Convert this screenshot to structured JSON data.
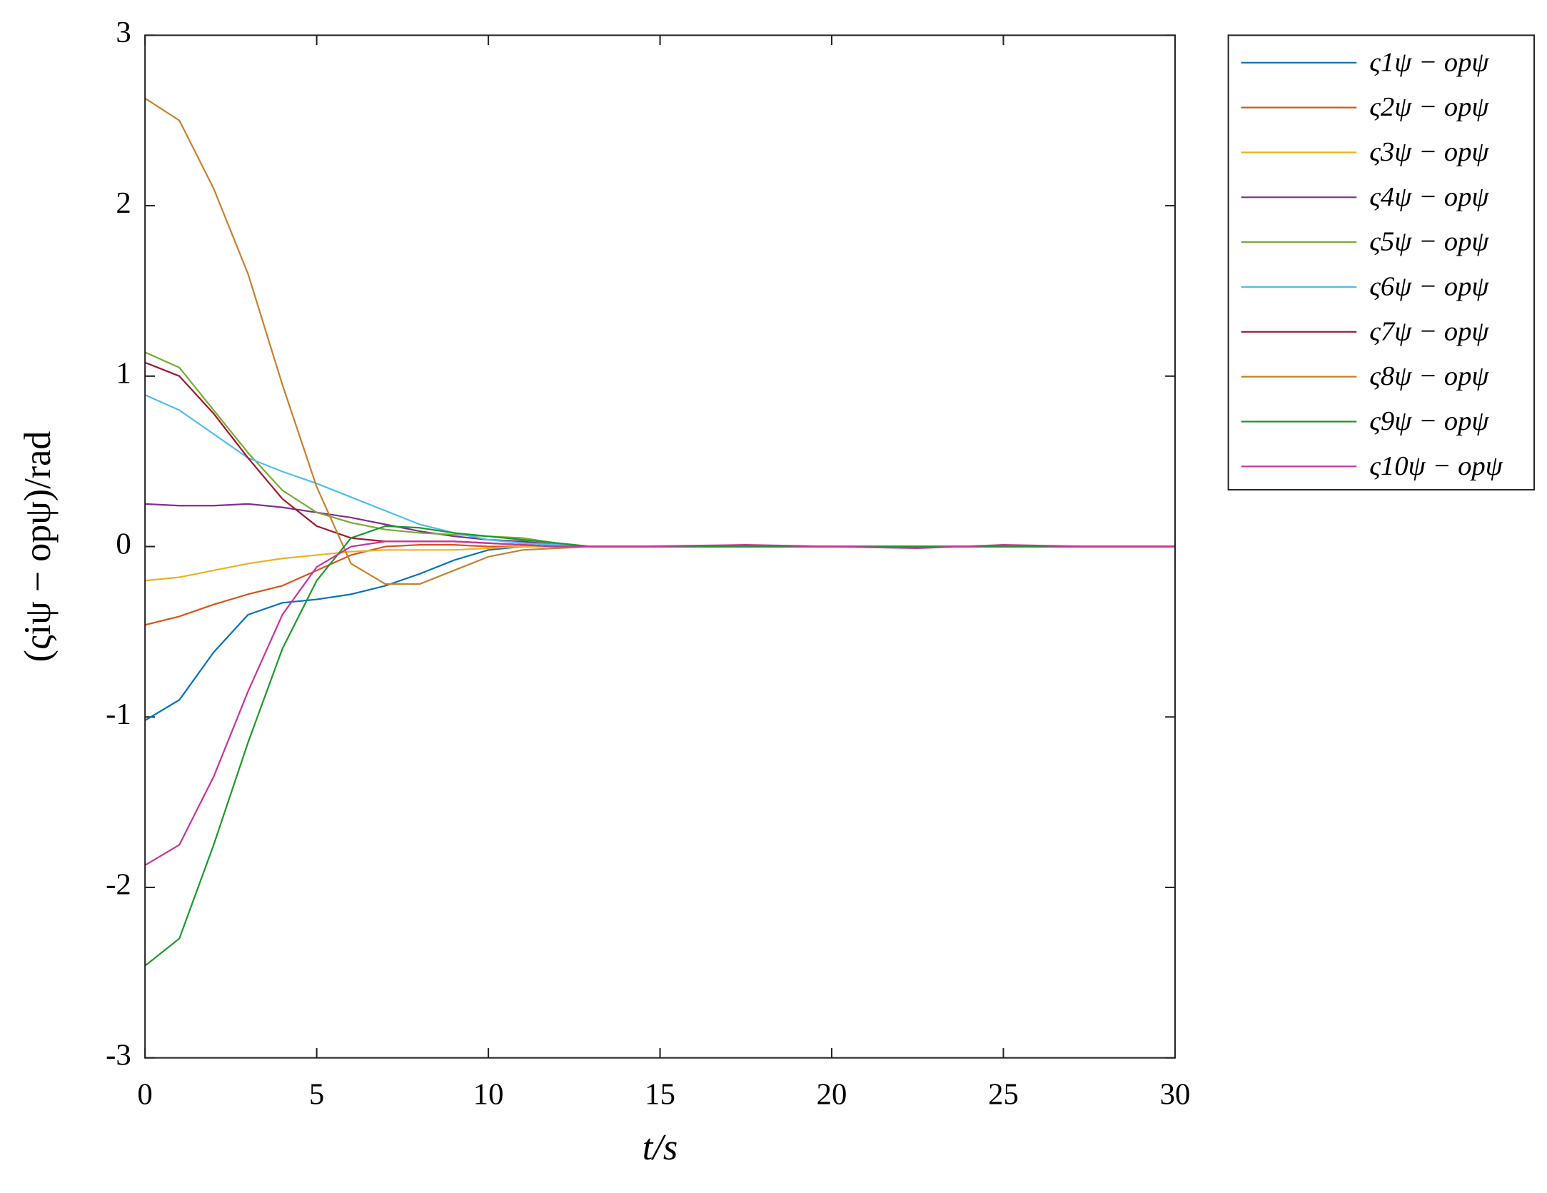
{
  "chart_data": {
    "type": "line",
    "xlabel": "t/s",
    "ylabel": "(ςiψ − opψ)/rad",
    "x": [
      0,
      1,
      2,
      3,
      4,
      5,
      6,
      7,
      8,
      9,
      10,
      11,
      12,
      13,
      14,
      17.5,
      20,
      22.5,
      25,
      27.5,
      30
    ],
    "xlim": [
      0,
      30
    ],
    "xticks": [
      0,
      5,
      10,
      15,
      20,
      25,
      30
    ],
    "ylim": [
      -3,
      3
    ],
    "yticks": [
      -3,
      -2,
      -1,
      0,
      1,
      2,
      3
    ],
    "legend": "outside-upper-right",
    "series": [
      {
        "name": "ς1ψ − opψ",
        "color": "#0072bd",
        "values": [
          -1.02,
          -0.9,
          -0.62,
          -0.4,
          -0.33,
          -0.31,
          -0.28,
          -0.23,
          -0.16,
          -0.08,
          -0.02,
          0,
          0,
          0,
          0,
          0,
          0,
          0,
          0,
          0,
          0
        ]
      },
      {
        "name": "ς2ψ − opψ",
        "color": "#d95319",
        "values": [
          -0.46,
          -0.41,
          -0.34,
          -0.28,
          -0.23,
          -0.14,
          -0.05,
          0,
          0.01,
          0.01,
          0,
          0,
          0,
          0,
          0,
          0,
          0,
          0,
          0,
          0,
          0
        ]
      },
      {
        "name": "ς3ψ − opψ",
        "color": "#edb120",
        "values": [
          -0.2,
          -0.18,
          -0.14,
          -0.1,
          -0.07,
          -0.05,
          -0.03,
          -0.02,
          -0.02,
          -0.02,
          -0.01,
          0,
          0,
          0,
          0,
          0,
          0,
          0,
          0,
          0,
          0
        ]
      },
      {
        "name": "ς4ψ − opψ",
        "color": "#7e2f8e",
        "values": [
          0.25,
          0.24,
          0.24,
          0.25,
          0.23,
          0.2,
          0.17,
          0.13,
          0.09,
          0.06,
          0.04,
          0.03,
          0.01,
          0,
          0,
          0,
          0,
          0,
          0,
          0,
          0
        ]
      },
      {
        "name": "ς5ψ − opψ",
        "color": "#77ac30",
        "values": [
          1.14,
          1.05,
          0.8,
          0.55,
          0.33,
          0.2,
          0.14,
          0.1,
          0.08,
          0.07,
          0.06,
          0.05,
          0.02,
          0,
          0,
          0,
          0,
          0,
          0,
          0,
          0
        ]
      },
      {
        "name": "ς6ψ − opψ",
        "color": "#4dbeee",
        "values": [
          0.89,
          0.8,
          0.66,
          0.52,
          0.44,
          0.37,
          0.29,
          0.21,
          0.13,
          0.08,
          0.04,
          0.02,
          0.01,
          0,
          0,
          0,
          0,
          0,
          0,
          0,
          0
        ]
      },
      {
        "name": "ς7ψ − opψ",
        "color": "#a2142f",
        "values": [
          1.08,
          1.0,
          0.78,
          0.52,
          0.28,
          0.12,
          0.05,
          0.03,
          0.03,
          0.03,
          0.02,
          0.01,
          0,
          0,
          0,
          0,
          0,
          0,
          0,
          0,
          0
        ]
      },
      {
        "name": "ς8ψ − opψ",
        "color": "#c8802e",
        "values": [
          2.63,
          2.5,
          2.1,
          1.6,
          0.95,
          0.35,
          -0.1,
          -0.22,
          -0.22,
          -0.14,
          -0.06,
          -0.02,
          -0.01,
          0,
          0,
          0,
          0,
          0,
          0,
          0,
          0
        ]
      },
      {
        "name": "ς9ψ − opψ",
        "color": "#1a9a2a",
        "values": [
          -2.46,
          -2.3,
          -1.75,
          -1.15,
          -0.6,
          -0.2,
          0.05,
          0.12,
          0.11,
          0.08,
          0.06,
          0.04,
          0.02,
          0,
          0,
          0,
          0,
          0,
          0,
          0,
          0
        ]
      },
      {
        "name": "ς10ψ − opψ",
        "color": "#c9339c",
        "values": [
          -1.87,
          -1.75,
          -1.35,
          -0.85,
          -0.4,
          -0.12,
          0,
          0.03,
          0.03,
          0.03,
          0.02,
          0.01,
          0,
          0,
          0,
          0.01,
          0,
          -0.01,
          0.01,
          0,
          0
        ]
      }
    ]
  }
}
